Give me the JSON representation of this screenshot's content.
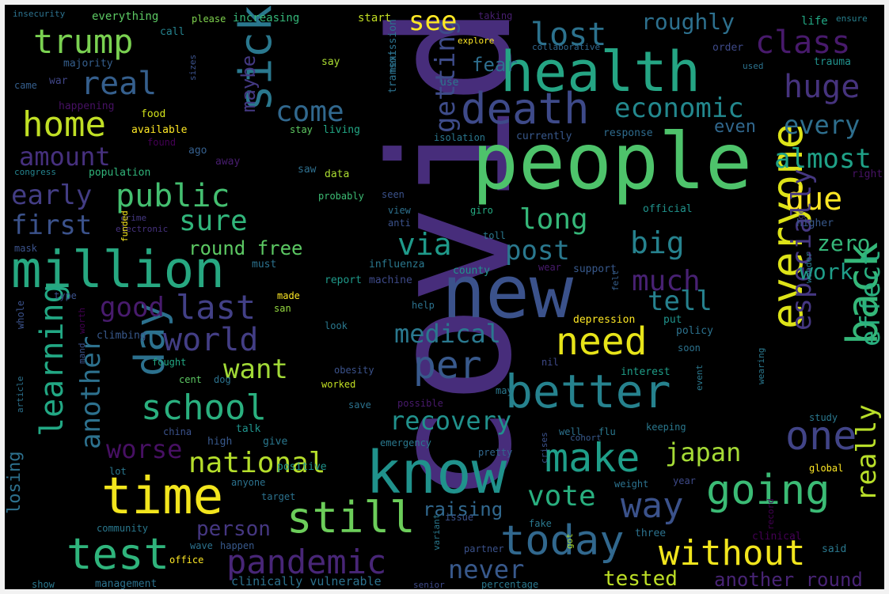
{
  "colors": {
    "frame": "#f2f2f2",
    "background": "#000000",
    "palette": [
      "#440154",
      "#472c7a",
      "#3b518b",
      "#2c718e",
      "#21908d",
      "#27ad81",
      "#5cc863",
      "#aadc32",
      "#fde725"
    ]
  },
  "words": [
    {
      "t": "covid",
      "c": "#472d7b"
    },
    {
      "t": "people",
      "c": "#4ec36b"
    },
    {
      "t": "new",
      "c": "#3b528b"
    },
    {
      "t": "health",
      "c": "#25a584"
    },
    {
      "t": "know",
      "c": "#20928c"
    },
    {
      "t": "million",
      "c": "#27a881"
    },
    {
      "t": "time",
      "c": "#f2e51d"
    },
    {
      "t": "death",
      "c": "#3e4a89"
    },
    {
      "t": "sick",
      "c": "#2a788e"
    },
    {
      "t": "day",
      "c": "#2c718e"
    },
    {
      "t": "better",
      "c": "#26828e"
    },
    {
      "t": "everyone",
      "c": "#dde318"
    },
    {
      "t": "back",
      "c": "#35b779"
    },
    {
      "t": "one",
      "c": "#414487"
    },
    {
      "t": "still",
      "c": "#6ccd5a"
    },
    {
      "t": "test",
      "c": "#2fb47c"
    },
    {
      "t": "going",
      "c": "#3bbb75"
    },
    {
      "t": "today",
      "c": "#31688e"
    },
    {
      "t": "make",
      "c": "#1f9e89"
    },
    {
      "t": "pandemic",
      "c": "#482677"
    },
    {
      "t": "without",
      "c": "#f1e51d"
    },
    {
      "t": "school",
      "c": "#2ab07f"
    },
    {
      "t": "need",
      "c": "#e7e419"
    },
    {
      "t": "per",
      "c": "#38598c"
    },
    {
      "t": "way",
      "c": "#3b528b"
    },
    {
      "t": "trump",
      "c": "#7ad151"
    },
    {
      "t": "home",
      "c": "#c0df25"
    },
    {
      "t": "lost",
      "c": "#2c728e"
    },
    {
      "t": "public",
      "c": "#44bf70"
    },
    {
      "t": "class",
      "c": "#481a6c"
    },
    {
      "t": "huge",
      "c": "#46337e"
    },
    {
      "t": "economic",
      "c": "#23888e"
    },
    {
      "t": "real",
      "c": "#355f8d"
    },
    {
      "t": "world",
      "c": "#433e85"
    },
    {
      "t": "last",
      "c": "#424086"
    },
    {
      "t": "learning",
      "c": "#22a884"
    },
    {
      "t": "getting",
      "c": "#3e4c8a"
    },
    {
      "t": "due",
      "c": "#fde725"
    },
    {
      "t": "especially",
      "c": "#453781"
    },
    {
      "t": "effect",
      "c": "#29af7f"
    },
    {
      "t": "really",
      "c": "#b8de29"
    },
    {
      "t": "national",
      "c": "#b5de2b"
    },
    {
      "t": "another",
      "c": "#2d718e"
    },
    {
      "t": "see",
      "c": "#fde725"
    },
    {
      "t": "come",
      "c": "#31688e"
    },
    {
      "t": "big",
      "c": "#26828e"
    },
    {
      "t": "via",
      "c": "#1f9a8a"
    },
    {
      "t": "long",
      "c": "#35b779"
    },
    {
      "t": "recovery",
      "c": "#21918c"
    },
    {
      "t": "japan",
      "c": "#a5db36"
    },
    {
      "t": "vote",
      "c": "#29af7f"
    },
    {
      "t": "medical",
      "c": "#2a788e"
    },
    {
      "t": "post",
      "c": "#2a788e"
    },
    {
      "t": "sure",
      "c": "#31b57b"
    },
    {
      "t": "first",
      "c": "#3b528b"
    },
    {
      "t": "early",
      "c": "#433d84"
    },
    {
      "t": "amount",
      "c": "#46307e"
    },
    {
      "t": "want",
      "c": "#a2da37"
    },
    {
      "t": "much",
      "c": "#482173"
    },
    {
      "t": "tell",
      "c": "#26818e"
    },
    {
      "t": "almost",
      "c": "#1fa187"
    },
    {
      "t": "every",
      "c": "#2e6f8e"
    },
    {
      "t": "zero",
      "c": "#35b779"
    },
    {
      "t": "work",
      "c": "#1f9e89"
    },
    {
      "t": "good",
      "c": "#481b6d"
    },
    {
      "t": "worse",
      "c": "#471063"
    },
    {
      "t": "never",
      "c": "#38598c"
    },
    {
      "t": "tested",
      "c": "#bddf26"
    },
    {
      "t": "raising",
      "c": "#31688e"
    },
    {
      "t": "person",
      "c": "#453781"
    },
    {
      "t": "another round",
      "c": "#482475"
    },
    {
      "t": "maybe",
      "c": "#443983"
    },
    {
      "t": "roughly",
      "c": "#2d708e"
    },
    {
      "t": "fear",
      "c": "#2e6e8e"
    },
    {
      "t": "round free",
      "c": "#5cc863"
    },
    {
      "t": "losing",
      "c": "#2d718e"
    },
    {
      "t": "even",
      "c": "#31688e"
    },
    {
      "t": "insecurity",
      "c": "#2c728e"
    },
    {
      "t": "everything",
      "c": "#5cc863"
    },
    {
      "t": "please",
      "c": "#7fd34e"
    },
    {
      "t": "increasing",
      "c": "#35b779"
    },
    {
      "t": "start",
      "c": "#c2df23"
    },
    {
      "t": "taking",
      "c": "#481f70"
    },
    {
      "t": "life",
      "c": "#22a884"
    },
    {
      "t": "ensure",
      "c": "#27808e"
    },
    {
      "t": "call",
      "c": "#25838e"
    },
    {
      "t": "explore",
      "c": "#fde725"
    },
    {
      "t": "collaborative",
      "c": "#31688e"
    },
    {
      "t": "order",
      "c": "#3e4a89"
    },
    {
      "t": "majority",
      "c": "#355f8d"
    },
    {
      "t": "say",
      "c": "#aadc32"
    },
    {
      "t": "trauma",
      "c": "#21918c"
    },
    {
      "t": "used",
      "c": "#2c728e"
    },
    {
      "t": "war",
      "c": "#404688"
    },
    {
      "t": "use",
      "c": "#2a788e"
    },
    {
      "t": "came",
      "c": "#355f8d"
    },
    {
      "t": "next",
      "c": "#2c728e"
    },
    {
      "t": "transmission",
      "c": "#2c728e"
    },
    {
      "t": "happening",
      "c": "#471164"
    },
    {
      "t": "sizes",
      "c": "#3b528b"
    },
    {
      "t": "food",
      "c": "#d2e21b"
    },
    {
      "t": "available",
      "c": "#fde725"
    },
    {
      "t": "stay",
      "c": "#5ec962"
    },
    {
      "t": "living",
      "c": "#22a785"
    },
    {
      "t": "isolation",
      "c": "#2a778e"
    },
    {
      "t": "currently",
      "c": "#38588c"
    },
    {
      "t": "response",
      "c": "#2f6c8e"
    },
    {
      "t": "found",
      "c": "#440154"
    },
    {
      "t": "ago",
      "c": "#355f8d"
    },
    {
      "t": "away",
      "c": "#481d6f"
    },
    {
      "t": "congress",
      "c": "#25838e"
    },
    {
      "t": "population",
      "c": "#31b57b"
    },
    {
      "t": "saw",
      "c": "#2e6f8e"
    },
    {
      "t": "data",
      "c": "#aadc32"
    },
    {
      "t": "right",
      "c": "#471365"
    },
    {
      "t": "probably",
      "c": "#3dbc74"
    },
    {
      "t": "seen",
      "c": "#3b528b"
    },
    {
      "t": "official",
      "c": "#20938c"
    },
    {
      "t": "higher",
      "c": "#38598c"
    },
    {
      "t": "view",
      "c": "#2d718e"
    },
    {
      "t": "giro",
      "c": "#25ab82"
    },
    {
      "t": "crime",
      "c": "#453882"
    },
    {
      "t": "electronic",
      "c": "#46327e"
    },
    {
      "t": "anti",
      "c": "#3b528b"
    },
    {
      "t": "age",
      "c": "#433e85"
    },
    {
      "t": "toll",
      "c": "#2a788e"
    },
    {
      "t": "mask",
      "c": "#3b528b"
    },
    {
      "t": "funded",
      "c": "#f6e620"
    },
    {
      "t": "must",
      "c": "#2c728e"
    },
    {
      "t": "influenza",
      "c": "#2a788e"
    },
    {
      "t": "county",
      "c": "#20938c"
    },
    {
      "t": "put",
      "c": "#20938c"
    },
    {
      "t": "wear",
      "c": "#481b6d"
    },
    {
      "t": "support",
      "c": "#38598c"
    },
    {
      "t": "type",
      "c": "#3b528b"
    },
    {
      "t": "made",
      "c": "#fde725"
    },
    {
      "t": "report",
      "c": "#1f9a8a"
    },
    {
      "t": "machine",
      "c": "#3e4a89"
    },
    {
      "t": "felt",
      "c": "#355f8d"
    },
    {
      "t": "san",
      "c": "#95d840"
    },
    {
      "t": "help",
      "c": "#2c728e"
    },
    {
      "t": "wonder",
      "c": "#2a788e"
    },
    {
      "t": "climbing",
      "c": "#38598c"
    },
    {
      "t": "look",
      "c": "#2a788e"
    },
    {
      "t": "depression",
      "c": "#fde725"
    },
    {
      "t": "policy",
      "c": "#2c728e"
    },
    {
      "t": "whole",
      "c": "#3b528b"
    },
    {
      "t": "worth",
      "c": "#440154"
    },
    {
      "t": "soon",
      "c": "#2c728e"
    },
    {
      "t": "fought",
      "c": "#22a884"
    },
    {
      "t": "nil",
      "c": "#3e4a89"
    },
    {
      "t": "dog",
      "c": "#2c728e"
    },
    {
      "t": "obesity",
      "c": "#3b528b"
    },
    {
      "t": "mand",
      "c": "#3b528b"
    },
    {
      "t": "interest",
      "c": "#1f9e89"
    },
    {
      "t": "cent",
      "c": "#5cc863"
    },
    {
      "t": "worked",
      "c": "#c2df23"
    },
    {
      "t": "may",
      "c": "#2a788e"
    },
    {
      "t": "save",
      "c": "#2c728e"
    },
    {
      "t": "possible",
      "c": "#481a6c"
    },
    {
      "t": "wearing",
      "c": "#2a788e"
    },
    {
      "t": "event",
      "c": "#2a788e"
    },
    {
      "t": "article",
      "c": "#2c728e"
    },
    {
      "t": "china",
      "c": "#3b528b"
    },
    {
      "t": "talk",
      "c": "#20938c"
    },
    {
      "t": "keeping",
      "c": "#2a788e"
    },
    {
      "t": "study",
      "c": "#2a788e"
    },
    {
      "t": "well",
      "c": "#2c728e"
    },
    {
      "t": "flu",
      "c": "#2a788e"
    },
    {
      "t": "high",
      "c": "#38598c"
    },
    {
      "t": "give",
      "c": "#2a788e"
    },
    {
      "t": "emergency",
      "c": "#2a788e"
    },
    {
      "t": "pretty",
      "c": "#31688e"
    },
    {
      "t": "cohort",
      "c": "#38598c"
    },
    {
      "t": "crises",
      "c": "#3b528b"
    },
    {
      "t": "lot",
      "c": "#2a788e"
    },
    {
      "t": "anyone",
      "c": "#2c728e"
    },
    {
      "t": "positive",
      "c": "#20938c"
    },
    {
      "t": "weight",
      "c": "#2c728e"
    },
    {
      "t": "year",
      "c": "#3e4a89"
    },
    {
      "t": "global",
      "c": "#fde725"
    },
    {
      "t": "target",
      "c": "#2c728e"
    },
    {
      "t": "issue",
      "c": "#3b528b"
    },
    {
      "t": "fake",
      "c": "#2a788e"
    },
    {
      "t": "three",
      "c": "#2c728e"
    },
    {
      "t": "record",
      "c": "#440154"
    },
    {
      "t": "community",
      "c": "#2a788e"
    },
    {
      "t": "wave",
      "c": "#2c728e"
    },
    {
      "t": "happen",
      "c": "#38598c"
    },
    {
      "t": "variant",
      "c": "#2a788e"
    },
    {
      "t": "partner",
      "c": "#3b528b"
    },
    {
      "t": "got",
      "c": "#aadc32"
    },
    {
      "t": "clinical",
      "c": "#440154"
    },
    {
      "t": "said",
      "c": "#2a788e"
    },
    {
      "t": "office",
      "c": "#fde725"
    },
    {
      "t": "show",
      "c": "#2a788e"
    },
    {
      "t": "management",
      "c": "#2c728e"
    },
    {
      "t": "clinically vulnerable",
      "c": "#2c728e"
    },
    {
      "t": "senior",
      "c": "#3e4a89"
    },
    {
      "t": "percentage",
      "c": "#2a788e"
    }
  ]
}
